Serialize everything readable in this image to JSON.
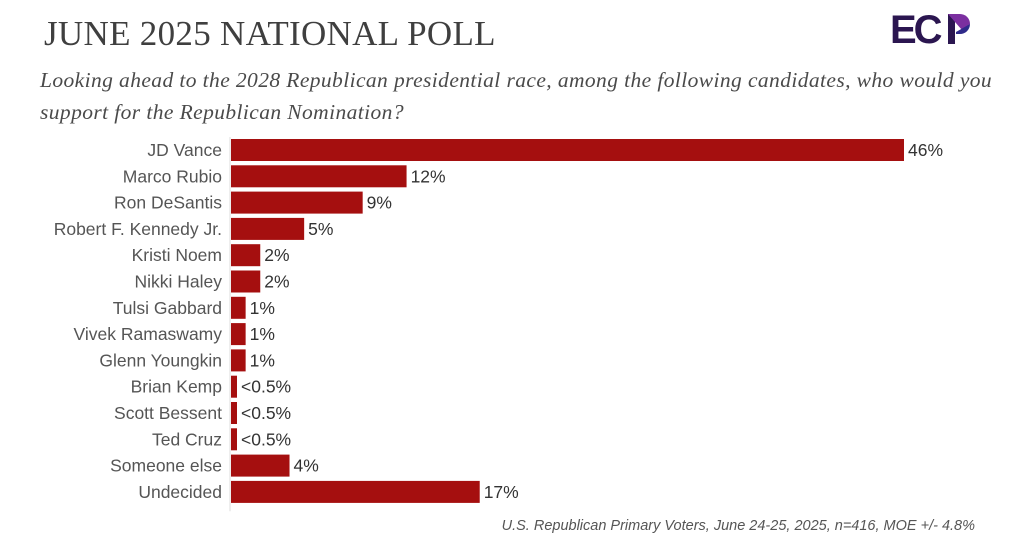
{
  "header": {
    "title": "JUNE 2025 NATIONAL POLL",
    "subtitle": "Looking ahead to the 2028 Republican presidential race, among the following candidates, who would you support for the Republican Nomination?",
    "logo_text": "ECP",
    "logo_colors": {
      "letters": "#2b1650",
      "accent_purple": "#7b2fa0",
      "accent_navy": "#2f2a8a"
    }
  },
  "footnote": "U.S. Republican Primary Voters, June 24-25, 2025, n=416, MOE +/- 4.8%",
  "colors": {
    "bar": "#a50f0f",
    "label": "#555555",
    "value": "#333333",
    "axis": "#dddddd"
  },
  "chart_data": {
    "type": "bar",
    "orientation": "horizontal",
    "title": "JUNE 2025 NATIONAL POLL",
    "xlabel": "",
    "ylabel": "",
    "xlim": [
      0,
      46
    ],
    "grid": false,
    "legend": "none",
    "categories": [
      "JD Vance",
      "Marco Rubio",
      "Ron DeSantis",
      "Robert F. Kennedy Jr.",
      "Kristi Noem",
      "Nikki Haley",
      "Tulsi Gabbard",
      "Vivek Ramaswamy",
      "Glenn Youngkin",
      "Brian Kemp",
      "Scott Bessent",
      "Ted Cruz",
      "Someone else",
      "Undecided"
    ],
    "values": [
      46,
      12,
      9,
      5,
      2,
      2,
      1,
      1,
      1,
      0.4,
      0.4,
      0.4,
      4,
      17
    ],
    "data_labels": [
      "46%",
      "12%",
      "9%",
      "5%",
      "2%",
      "2%",
      "1%",
      "1%",
      "1%",
      "<0.5%",
      "<0.5%",
      "<0.5%",
      "4%",
      "17%"
    ]
  }
}
